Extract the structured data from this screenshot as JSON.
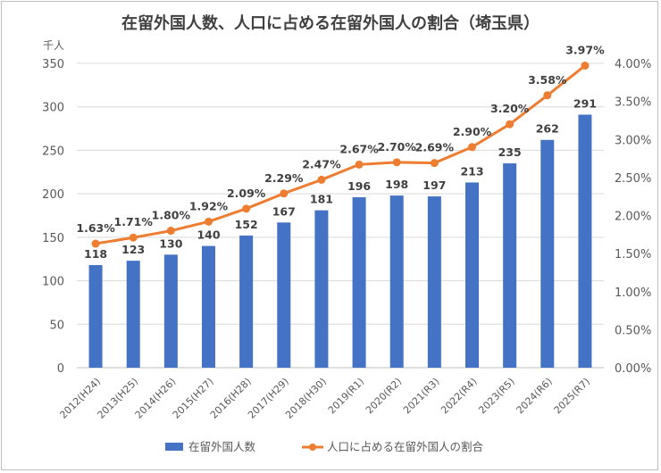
{
  "title": "在留外国人数、人口に占める在留外国人の割合（埼玉県）",
  "chart_data": {
    "type": "bar",
    "title": "在留外国人数、人口に占める在留外国人の割合（埼玉県）",
    "left_axis_unit": "千人",
    "categories": [
      "2012(H24)",
      "2013(H25)",
      "2014(H26)",
      "2015(H27)",
      "2016(H28)",
      "2017(H29)",
      "2018(H30)",
      "2019(R1)",
      "2020(R2)",
      "2021(R3)",
      "2022(R4)",
      "2023(R5)",
      "2024(R6)",
      "2025(R7)"
    ],
    "series": [
      {
        "name": "在留外国人数",
        "type": "bar",
        "axis": "left",
        "color": "#4472c4",
        "values": [
          118,
          123,
          130,
          140,
          152,
          167,
          181,
          196,
          198,
          197,
          213,
          235,
          262,
          291
        ],
        "labels": [
          "118",
          "123",
          "130",
          "140",
          "152",
          "167",
          "181",
          "196",
          "198",
          "197",
          "213",
          "235",
          "262",
          "291"
        ]
      },
      {
        "name": "人口に占める在留外国人の割合",
        "type": "line",
        "axis": "right",
        "color": "#ed7d31",
        "values": [
          1.63,
          1.71,
          1.8,
          1.92,
          2.09,
          2.29,
          2.47,
          2.67,
          2.7,
          2.69,
          2.9,
          3.2,
          3.58,
          3.97
        ],
        "labels": [
          "1.63%",
          "1.71%",
          "1.80%",
          "1.92%",
          "2.09%",
          "2.29%",
          "2.47%",
          "2.67%",
          "2.70%",
          "2.69%",
          "2.90%",
          "3.20%",
          "3.58%",
          "3.97%"
        ]
      }
    ],
    "left_axis": {
      "min": 0,
      "max": 350,
      "ticks": [
        "0",
        "50",
        "100",
        "150",
        "200",
        "250",
        "300",
        "350"
      ]
    },
    "right_axis": {
      "min": 0,
      "max": 4,
      "ticks": [
        "0.00%",
        "0.50%",
        "1.00%",
        "1.50%",
        "2.00%",
        "2.50%",
        "3.00%",
        "3.50%",
        "4.00%"
      ]
    },
    "grid": true,
    "legend_position": "bottom"
  }
}
